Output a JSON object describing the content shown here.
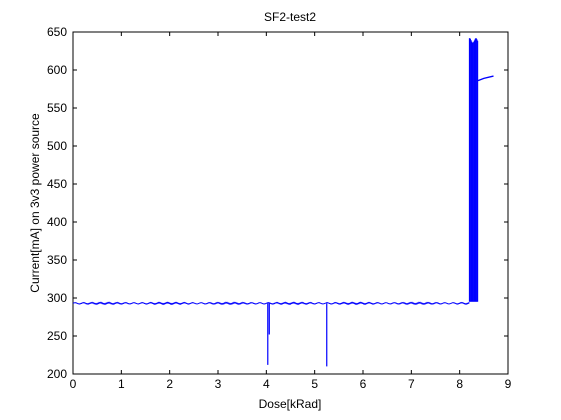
{
  "chart_data": {
    "type": "line",
    "title": "SF2-test2",
    "xlabel": "Dose[kRad]",
    "ylabel": "Current[mA] on 3v3 power source",
    "xlim": [
      0,
      9
    ],
    "ylim": [
      200,
      650
    ],
    "xticks": [
      0,
      1,
      2,
      3,
      4,
      5,
      6,
      7,
      8,
      9
    ],
    "yticks": [
      200,
      250,
      300,
      350,
      400,
      450,
      500,
      550,
      600,
      650
    ],
    "grid": false,
    "line_color": "#0000ff",
    "series": [
      {
        "baseline": {
          "x_start": 0,
          "x_end": 8.2,
          "y": 293
        },
        "dips": [
          {
            "x": 4.03,
            "y_low": 212,
            "y_mid": 252
          },
          {
            "x": 5.25,
            "y_low": 210
          }
        ],
        "oscillation": {
          "x_start": 8.2,
          "x_end": 8.38,
          "y_low": 295,
          "y_high": 642
        },
        "tail": [
          {
            "x": 8.38,
            "y": 586
          },
          {
            "x": 8.5,
            "y": 589
          },
          {
            "x": 8.7,
            "y": 592
          }
        ]
      }
    ]
  }
}
